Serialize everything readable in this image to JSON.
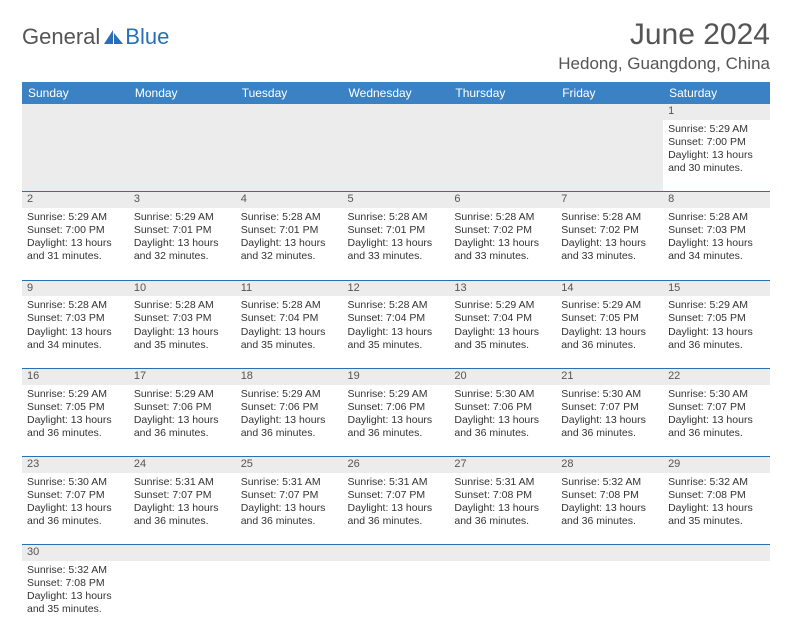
{
  "brand": {
    "part1": "General",
    "part2": "Blue"
  },
  "title": "June 2024",
  "location": "Hedong, Guangdong, China",
  "colors": {
    "header_bg": "#3b82c4",
    "accent": "#2a6fb5",
    "daynum_bg": "#ececec",
    "text": "#333333"
  },
  "day_headers": [
    "Sunday",
    "Monday",
    "Tuesday",
    "Wednesday",
    "Thursday",
    "Friday",
    "Saturday"
  ],
  "weeks": [
    {
      "nums": [
        "",
        "",
        "",
        "",
        "",
        "",
        "1"
      ],
      "cells": [
        null,
        null,
        null,
        null,
        null,
        null,
        {
          "sunrise": "5:29 AM",
          "sunset": "7:00 PM",
          "daylight": "13 hours and 30 minutes."
        }
      ]
    },
    {
      "nums": [
        "2",
        "3",
        "4",
        "5",
        "6",
        "7",
        "8"
      ],
      "cells": [
        {
          "sunrise": "5:29 AM",
          "sunset": "7:00 PM",
          "daylight": "13 hours and 31 minutes."
        },
        {
          "sunrise": "5:29 AM",
          "sunset": "7:01 PM",
          "daylight": "13 hours and 32 minutes."
        },
        {
          "sunrise": "5:28 AM",
          "sunset": "7:01 PM",
          "daylight": "13 hours and 32 minutes."
        },
        {
          "sunrise": "5:28 AM",
          "sunset": "7:01 PM",
          "daylight": "13 hours and 33 minutes."
        },
        {
          "sunrise": "5:28 AM",
          "sunset": "7:02 PM",
          "daylight": "13 hours and 33 minutes."
        },
        {
          "sunrise": "5:28 AM",
          "sunset": "7:02 PM",
          "daylight": "13 hours and 33 minutes."
        },
        {
          "sunrise": "5:28 AM",
          "sunset": "7:03 PM",
          "daylight": "13 hours and 34 minutes."
        }
      ]
    },
    {
      "nums": [
        "9",
        "10",
        "11",
        "12",
        "13",
        "14",
        "15"
      ],
      "cells": [
        {
          "sunrise": "5:28 AM",
          "sunset": "7:03 PM",
          "daylight": "13 hours and 34 minutes."
        },
        {
          "sunrise": "5:28 AM",
          "sunset": "7:03 PM",
          "daylight": "13 hours and 35 minutes."
        },
        {
          "sunrise": "5:28 AM",
          "sunset": "7:04 PM",
          "daylight": "13 hours and 35 minutes."
        },
        {
          "sunrise": "5:28 AM",
          "sunset": "7:04 PM",
          "daylight": "13 hours and 35 minutes."
        },
        {
          "sunrise": "5:29 AM",
          "sunset": "7:04 PM",
          "daylight": "13 hours and 35 minutes."
        },
        {
          "sunrise": "5:29 AM",
          "sunset": "7:05 PM",
          "daylight": "13 hours and 36 minutes."
        },
        {
          "sunrise": "5:29 AM",
          "sunset": "7:05 PM",
          "daylight": "13 hours and 36 minutes."
        }
      ]
    },
    {
      "nums": [
        "16",
        "17",
        "18",
        "19",
        "20",
        "21",
        "22"
      ],
      "cells": [
        {
          "sunrise": "5:29 AM",
          "sunset": "7:05 PM",
          "daylight": "13 hours and 36 minutes."
        },
        {
          "sunrise": "5:29 AM",
          "sunset": "7:06 PM",
          "daylight": "13 hours and 36 minutes."
        },
        {
          "sunrise": "5:29 AM",
          "sunset": "7:06 PM",
          "daylight": "13 hours and 36 minutes."
        },
        {
          "sunrise": "5:29 AM",
          "sunset": "7:06 PM",
          "daylight": "13 hours and 36 minutes."
        },
        {
          "sunrise": "5:30 AM",
          "sunset": "7:06 PM",
          "daylight": "13 hours and 36 minutes."
        },
        {
          "sunrise": "5:30 AM",
          "sunset": "7:07 PM",
          "daylight": "13 hours and 36 minutes."
        },
        {
          "sunrise": "5:30 AM",
          "sunset": "7:07 PM",
          "daylight": "13 hours and 36 minutes."
        }
      ]
    },
    {
      "nums": [
        "23",
        "24",
        "25",
        "26",
        "27",
        "28",
        "29"
      ],
      "cells": [
        {
          "sunrise": "5:30 AM",
          "sunset": "7:07 PM",
          "daylight": "13 hours and 36 minutes."
        },
        {
          "sunrise": "5:31 AM",
          "sunset": "7:07 PM",
          "daylight": "13 hours and 36 minutes."
        },
        {
          "sunrise": "5:31 AM",
          "sunset": "7:07 PM",
          "daylight": "13 hours and 36 minutes."
        },
        {
          "sunrise": "5:31 AM",
          "sunset": "7:07 PM",
          "daylight": "13 hours and 36 minutes."
        },
        {
          "sunrise": "5:31 AM",
          "sunset": "7:08 PM",
          "daylight": "13 hours and 36 minutes."
        },
        {
          "sunrise": "5:32 AM",
          "sunset": "7:08 PM",
          "daylight": "13 hours and 36 minutes."
        },
        {
          "sunrise": "5:32 AM",
          "sunset": "7:08 PM",
          "daylight": "13 hours and 35 minutes."
        }
      ]
    },
    {
      "nums": [
        "30",
        "",
        "",
        "",
        "",
        "",
        ""
      ],
      "cells": [
        {
          "sunrise": "5:32 AM",
          "sunset": "7:08 PM",
          "daylight": "13 hours and 35 minutes."
        },
        null,
        null,
        null,
        null,
        null,
        null
      ]
    }
  ],
  "labels": {
    "sunrise": "Sunrise:",
    "sunset": "Sunset:",
    "daylight": "Daylight:"
  }
}
